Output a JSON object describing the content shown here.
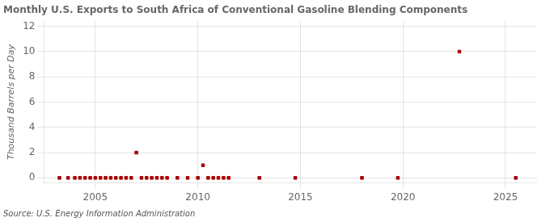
{
  "chart_data": {
    "type": "scatter",
    "title": "Monthly U.S. Exports to South Africa of Conventional Gasoline Blending Components",
    "ylabel": "Thousand Barrels per Day",
    "annotation": "Source: U.S. Energy Information Administration",
    "x": [
      2003.25,
      2003.67,
      2004.0,
      2004.25,
      2004.5,
      2004.75,
      2005.0,
      2005.25,
      2005.5,
      2005.75,
      2006.0,
      2006.25,
      2006.5,
      2006.75,
      2007.0,
      2007.25,
      2007.5,
      2007.75,
      2008.0,
      2008.25,
      2008.5,
      2009.0,
      2009.5,
      2010.0,
      2010.25,
      2010.5,
      2010.75,
      2011.0,
      2011.25,
      2011.5,
      2013.0,
      2014.75,
      2018.0,
      2019.75,
      2022.75,
      2025.5
    ],
    "values": [
      0.0,
      0.0,
      0.0,
      0.0,
      0.0,
      0.0,
      0.0,
      0.0,
      0.0,
      0.0,
      0.0,
      0.0,
      0.0,
      0.0,
      2.0,
      0.0,
      0.0,
      0.0,
      0.0,
      0.0,
      0.0,
      0.0,
      0.0,
      0.0,
      1.0,
      0.0,
      0.0,
      0.0,
      0.0,
      0.0,
      0.0,
      0.0,
      0.0,
      0.0,
      10.0,
      0.0
    ],
    "color": "#aa0000",
    "marker": "square",
    "xlim": [
      2002.5,
      2026.5
    ],
    "ylim": [
      -0.4,
      12.4
    ],
    "xticks": [
      2005,
      2010,
      2015,
      2020,
      2025
    ],
    "yticks": [
      0,
      2,
      4,
      6,
      8,
      10,
      12
    ],
    "grid": true
  }
}
